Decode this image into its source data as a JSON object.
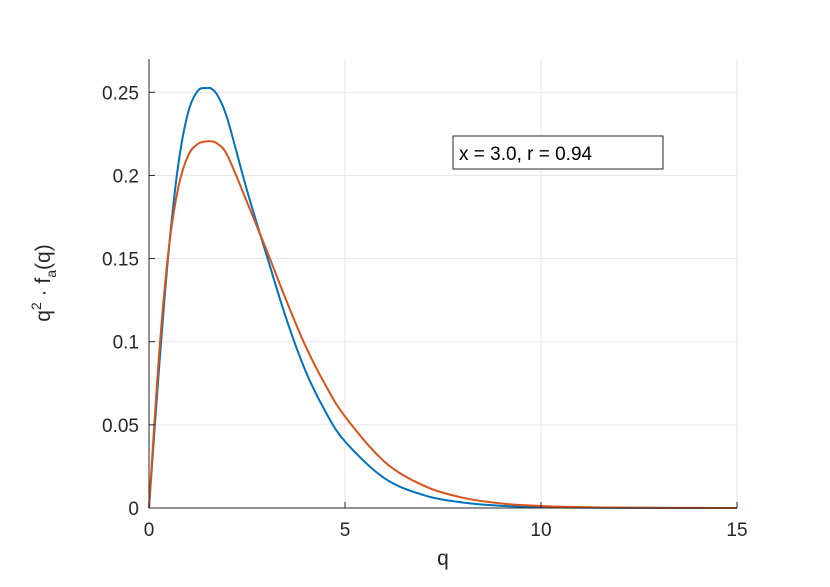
{
  "chart_data": {
    "type": "line",
    "xlabel": "q",
    "ylabel": {
      "base": "q",
      "sup": "2",
      "middle": " · f",
      "sub": "a",
      "end": "(q)"
    },
    "xlim": [
      0,
      15
    ],
    "ylim": [
      0,
      0.27
    ],
    "xticks": [
      0,
      5,
      10,
      15
    ],
    "xtick_labels": [
      "0",
      "5",
      "10",
      "15"
    ],
    "yticks": [
      0,
      0.05,
      0.1,
      0.15,
      0.2,
      0.25
    ],
    "ytick_labels": [
      "0",
      "0.05",
      "0.1",
      "0.15",
      "0.2",
      "0.25"
    ],
    "grid": true,
    "annotation": "x = 3.0, r = 0.94",
    "series": [
      {
        "color": "#0072BD",
        "x": [
          0,
          0.25,
          0.5,
          0.75,
          1.0,
          1.25,
          1.5,
          1.6,
          1.75,
          2.0,
          2.5,
          3.0,
          3.5,
          4.0,
          4.5,
          5.0,
          6.0,
          7.0,
          8.0,
          9.0,
          10.0,
          11.0,
          12.0,
          13.0,
          14.0,
          15.0
        ],
        "y": [
          0,
          0.082,
          0.154,
          0.207,
          0.238,
          0.251,
          0.2525,
          0.252,
          0.248,
          0.234,
          0.191,
          0.152,
          0.114,
          0.082,
          0.058,
          0.04,
          0.018,
          0.0078,
          0.0033,
          0.0013,
          0.0005,
          0.0002,
          0.0001,
          4e-05,
          1e-05,
          0
        ]
      },
      {
        "color": "#D95319",
        "x": [
          0,
          0.25,
          0.5,
          0.75,
          1.0,
          1.25,
          1.5,
          1.6,
          1.75,
          2.0,
          2.5,
          3.0,
          3.5,
          4.0,
          4.5,
          5.0,
          6.0,
          7.0,
          8.0,
          9.0,
          10.0,
          11.0,
          12.0,
          13.0,
          14.0,
          15.0
        ],
        "y": [
          0,
          0.09,
          0.155,
          0.193,
          0.212,
          0.219,
          0.2205,
          0.2205,
          0.219,
          0.212,
          0.184,
          0.155,
          0.125,
          0.097,
          0.074,
          0.055,
          0.028,
          0.0135,
          0.0062,
          0.0027,
          0.0012,
          0.0005,
          0.0002,
          0.0001,
          4e-05,
          0
        ]
      }
    ]
  }
}
